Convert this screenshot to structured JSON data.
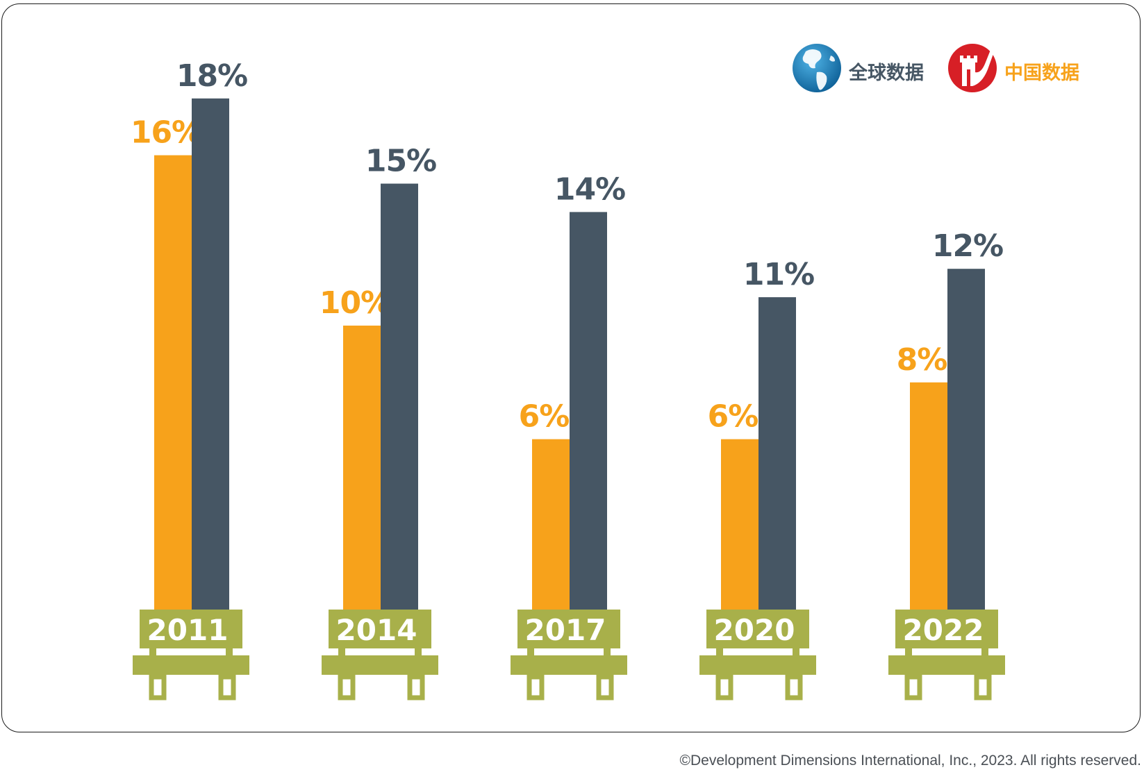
{
  "chart_data": {
    "type": "bar",
    "categories": [
      "2011",
      "2014",
      "2017",
      "2020",
      "2022"
    ],
    "series": [
      {
        "name": "中国数据",
        "values": [
          16,
          10,
          6,
          6,
          8
        ],
        "color": "#F7A21B",
        "labels": [
          "16%",
          "10%",
          "6%",
          "6%",
          "8%"
        ]
      },
      {
        "name": "全球数据",
        "values": [
          18,
          15,
          14,
          11,
          12
        ],
        "color": "#465664",
        "labels": [
          "18%",
          "15%",
          "14%",
          "11%",
          "12%"
        ]
      }
    ],
    "ylim": [
      0,
      18
    ],
    "grid": false,
    "legend": {
      "placement": "top-right",
      "order": [
        "全球数据",
        "中国数据"
      ]
    },
    "category_style": "bench-shaped labels",
    "category_color": "#A8B04A"
  },
  "legend": {
    "global_label": "全球数据",
    "global_icon": "globe-icon",
    "china_label": "中国数据",
    "china_icon": "great-wall-icon"
  },
  "footer": {
    "copyright": "©Development Dimensions International, Inc., 2023. All rights reserved."
  }
}
